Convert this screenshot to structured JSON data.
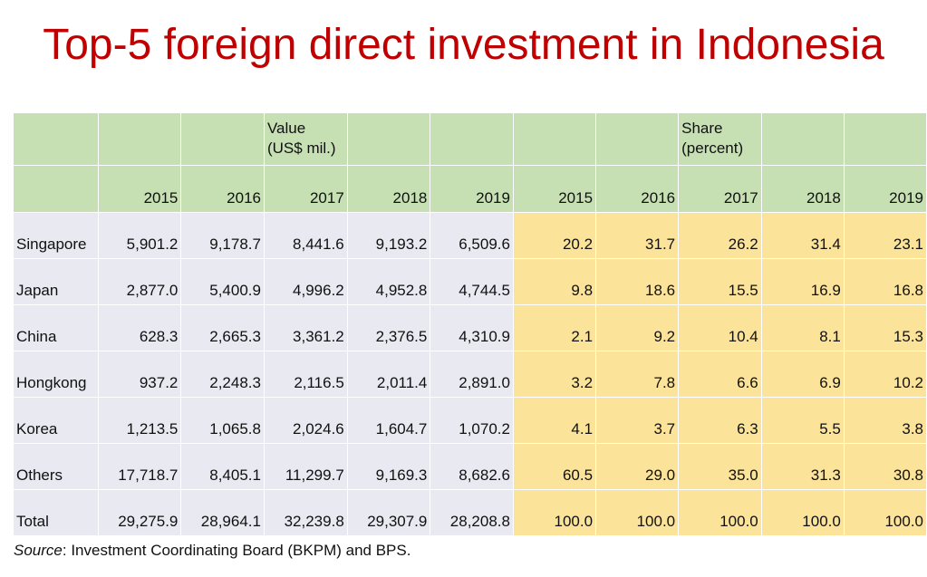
{
  "title": "Top-5 foreign direct investment in Indonesia",
  "header": {
    "value_group": [
      "Value",
      "(US$ mil.)"
    ],
    "share_group": [
      "Share",
      "(percent)"
    ],
    "years_value": [
      "2015",
      "2016",
      "2017",
      "2018",
      "2019"
    ],
    "years_share": [
      "2015",
      "2016",
      "2017",
      "2018",
      "2019"
    ]
  },
  "rows": [
    {
      "name": "Singapore",
      "values": [
        "5,901.2",
        "9,178.7",
        "8,441.6",
        "9,193.2",
        "6,509.6"
      ],
      "shares": [
        "20.2",
        "31.7",
        "26.2",
        "31.4",
        "23.1"
      ]
    },
    {
      "name": "Japan",
      "values": [
        "2,877.0",
        "5,400.9",
        "4,996.2",
        "4,952.8",
        "4,744.5"
      ],
      "shares": [
        "9.8",
        "18.6",
        "15.5",
        "16.9",
        "16.8"
      ]
    },
    {
      "name": "China",
      "values": [
        "628.3",
        "2,665.3",
        "3,361.2",
        "2,376.5",
        "4,310.9"
      ],
      "shares": [
        "2.1",
        "9.2",
        "10.4",
        "8.1",
        "15.3"
      ]
    },
    {
      "name": "Hongkong",
      "values": [
        "937.2",
        "2,248.3",
        "2,116.5",
        "2,011.4",
        "2,891.0"
      ],
      "shares": [
        "3.2",
        "7.8",
        "6.6",
        "6.9",
        "10.2"
      ]
    },
    {
      "name": "Korea",
      "values": [
        "1,213.5",
        "1,065.8",
        "2,024.6",
        "1,604.7",
        "1,070.2"
      ],
      "shares": [
        "4.1",
        "3.7",
        "6.3",
        "5.5",
        "3.8"
      ]
    },
    {
      "name": "Others",
      "values": [
        "17,718.7",
        "8,405.1",
        "11,299.7",
        "9,169.3",
        "8,682.6"
      ],
      "shares": [
        "60.5",
        "29.0",
        "35.0",
        "31.3",
        "30.8"
      ]
    },
    {
      "name": "Total",
      "values": [
        "29,275.9",
        "28,964.1",
        "32,239.8",
        "29,307.9",
        "28,208.8"
      ],
      "shares": [
        "100.0",
        "100.0",
        "100.0",
        "100.0",
        "100.0"
      ]
    }
  ],
  "source": {
    "label": "Source",
    "text": ": Investment Coordinating Board (BKPM) and BPS."
  },
  "colors": {
    "title": "#c00000",
    "header_bg": "#c6e0b4",
    "value_bg": "#e8e9f1",
    "share_bg": "#fce39a"
  }
}
